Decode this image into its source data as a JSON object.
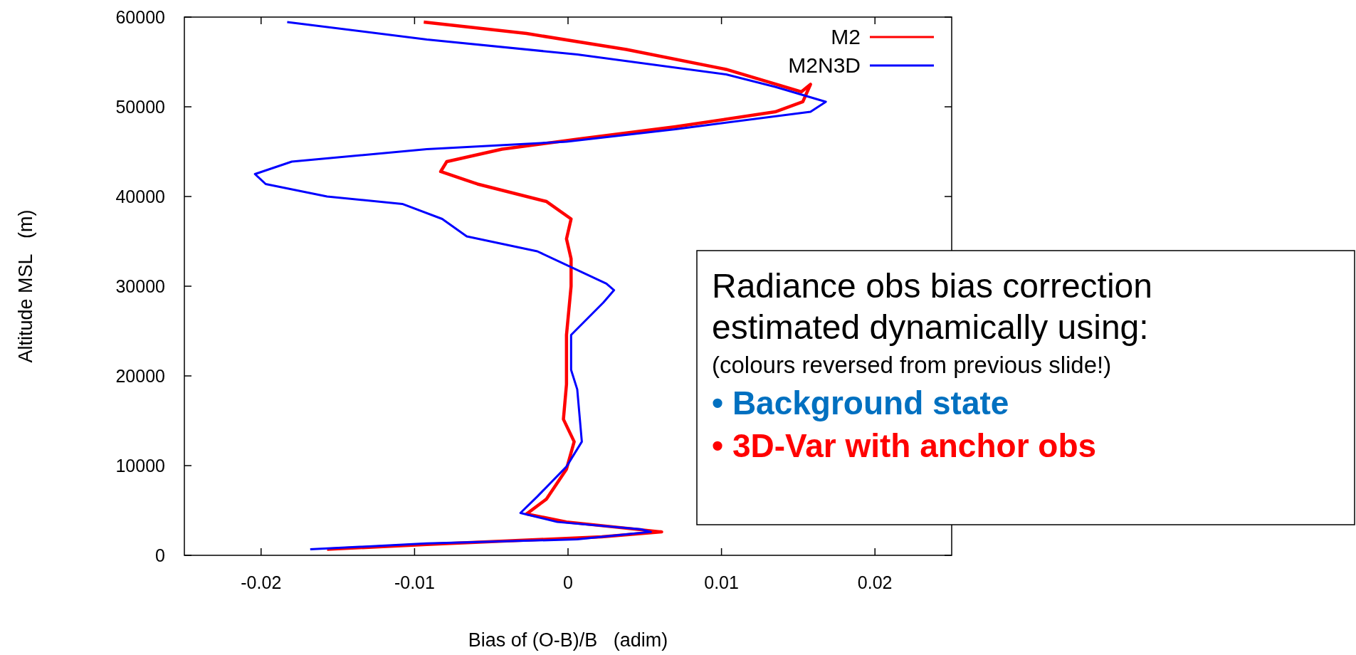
{
  "chart_data": {
    "type": "line",
    "xlabel": "Bias of (O-B)/B   (adim)",
    "ylabel": "Altitude MSL   (m)",
    "xlim": [
      -0.025,
      0.025
    ],
    "xticks": [
      -0.02,
      -0.01,
      0,
      0.01,
      0.02
    ],
    "ylim": [
      0,
      60000
    ],
    "yticks": [
      0,
      10000,
      20000,
      30000,
      40000,
      50000,
      60000
    ],
    "legend": "top right",
    "grid": false,
    "marker": "none",
    "line_style": "solid",
    "series": [
      {
        "name": "M2",
        "color": "#ff0000",
        "x": [
          -0.0094,
          -0.0027,
          0.0038,
          0.0103,
          0.0152,
          0.0158,
          0.0153,
          0.0135,
          0.007,
          0.0006,
          -0.0043,
          -0.0079,
          -0.0083,
          -0.0059,
          -0.0014,
          0.0002,
          -0.0001,
          0.0002,
          0.0002,
          0.0002,
          -0.0001,
          -0.0001,
          -0.0003,
          0.0004,
          -0.0001,
          -0.0014,
          -0.0027,
          -0.0001,
          0.0061,
          0.0022,
          -0.0092,
          -0.0157
        ],
        "values": [
          59450,
          58170,
          56390,
          54170,
          51670,
          52500,
          50560,
          49440,
          47780,
          46390,
          45280,
          43890,
          42780,
          41390,
          39440,
          37500,
          35280,
          33060,
          30280,
          30000,
          24560,
          19060,
          15170,
          12670,
          9610,
          6280,
          4610,
          3720,
          2610,
          2060,
          1220,
          670
        ]
      },
      {
        "name": "M2N3D",
        "color": "#0000ff",
        "x": [
          -0.0183,
          -0.0092,
          0.0006,
          0.0103,
          0.0135,
          0.0168,
          0.0158,
          0.007,
          -0.0001,
          -0.0092,
          -0.018,
          -0.0204,
          -0.0197,
          -0.0157,
          -0.0108,
          -0.0082,
          -0.0066,
          -0.002,
          0.0025,
          0.003,
          0.0023,
          0.0002,
          0.0002,
          0.0006,
          0.0009,
          -0.0001,
          -0.002,
          -0.0031,
          -0.0007,
          0.0048,
          0.0054,
          0.0006,
          -0.0092,
          -0.0168
        ],
        "values": [
          59450,
          57500,
          55830,
          53610,
          52220,
          50560,
          49440,
          47500,
          46110,
          45280,
          43890,
          42500,
          41390,
          40000,
          39170,
          37500,
          35560,
          33890,
          30280,
          29560,
          28170,
          24560,
          20670,
          18500,
          12670,
          9890,
          6560,
          4720,
          3720,
          2890,
          2610,
          1780,
          1330,
          670
        ]
      }
    ],
    "annotations": [
      "Radiance obs bias correction",
      "estimated dynamically using:",
      "(colours reversed from previous slide!)",
      "• Background state",
      "• 3D-Var with anchor obs"
    ]
  }
}
